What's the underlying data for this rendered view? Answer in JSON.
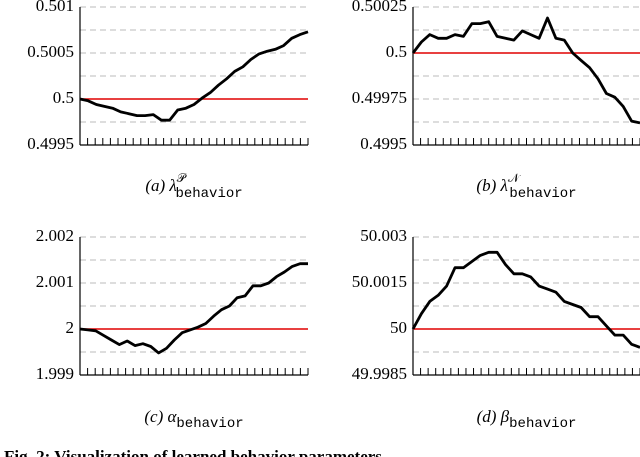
{
  "chart_data": [
    {
      "type": "line",
      "caption": {
        "prefix": "(a) λ",
        "sup": "𝒫",
        "sub": "behavior"
      },
      "ylim": [
        0.4995,
        0.501
      ],
      "yticks": [
        0.4995,
        0.5,
        0.5005,
        0.501
      ],
      "reference": 0.5,
      "reference_color": "#e00000",
      "grid": true,
      "series": [
        {
          "color": "#000000",
          "values": [
            0.5,
            0.49998,
            0.49994,
            0.49992,
            0.4999,
            0.49986,
            0.49984,
            0.49982,
            0.49982,
            0.49983,
            0.49977,
            0.49977,
            0.49988,
            0.4999,
            0.49994,
            0.50001,
            0.50007,
            0.50015,
            0.50022,
            0.5003,
            0.50035,
            0.50043,
            0.50049,
            0.50052,
            0.50054,
            0.50058,
            0.50066,
            0.5007,
            0.50073
          ]
        }
      ]
    },
    {
      "type": "line",
      "caption": {
        "prefix": "(b) λ",
        "sup": "𝒩",
        "sub": "behavior"
      },
      "ylim": [
        0.4995,
        0.50025
      ],
      "yticks": [
        0.4995,
        0.49975,
        0.5,
        0.50025
      ],
      "reference": 0.5,
      "reference_color": "#e00000",
      "grid": true,
      "series": [
        {
          "color": "#000000",
          "values": [
            0.5,
            0.50006,
            0.5001,
            0.50008,
            0.50008,
            0.5001,
            0.50009,
            0.50016,
            0.50016,
            0.50017,
            0.50009,
            0.50008,
            0.50007,
            0.50012,
            0.5001,
            0.50008,
            0.50019,
            0.50008,
            0.50007,
            0.5,
            0.49996,
            0.49992,
            0.49986,
            0.49978,
            0.49976,
            0.49971,
            0.49963,
            0.49962
          ]
        }
      ]
    },
    {
      "type": "line",
      "caption": {
        "prefix": "(c) α",
        "sub": "behavior"
      },
      "ylim": [
        1.999,
        2.002
      ],
      "yticks": [
        1.999,
        2,
        2.001,
        2.002
      ],
      "reference": 2,
      "reference_color": "#e00000",
      "grid": true,
      "series": [
        {
          "color": "#000000",
          "values": [
            2,
            1.99998,
            1.99996,
            1.99986,
            1.99976,
            1.99966,
            1.99974,
            1.99964,
            1.99968,
            1.99962,
            1.99948,
            1.99958,
            1.99976,
            1.99992,
            1.99998,
            2.00004,
            2.00012,
            2.00028,
            2.00042,
            2.0005,
            2.00068,
            2.00072,
            2.00094,
            2.00094,
            2.001,
            2.00114,
            2.00124,
            2.00136,
            2.00142,
            2.00142
          ]
        }
      ]
    },
    {
      "type": "line",
      "caption": {
        "prefix": "(d) β",
        "sub": "behavior"
      },
      "ylim": [
        49.9985,
        50.003
      ],
      "yticks": [
        49.9985,
        50,
        50.0015,
        50.003
      ],
      "reference": 50,
      "reference_color": "#e00000",
      "grid": true,
      "series": [
        {
          "color": "#000000",
          "values": [
            50,
            50.0005,
            50.0009,
            50.0011,
            50.0014,
            50.002,
            50.002,
            50.0022,
            50.0024,
            50.0025,
            50.0025,
            50.0021,
            50.0018,
            50.0018,
            50.0017,
            50.0014,
            50.0013,
            50.0012,
            50.0009,
            50.0008,
            50.0007,
            50.0004,
            50.0004,
            50.0001,
            49.9998,
            49.9998,
            49.9995,
            49.9994
          ]
        }
      ]
    }
  ],
  "caption": "Fig. 2: Visualization of learned behavior parameters"
}
